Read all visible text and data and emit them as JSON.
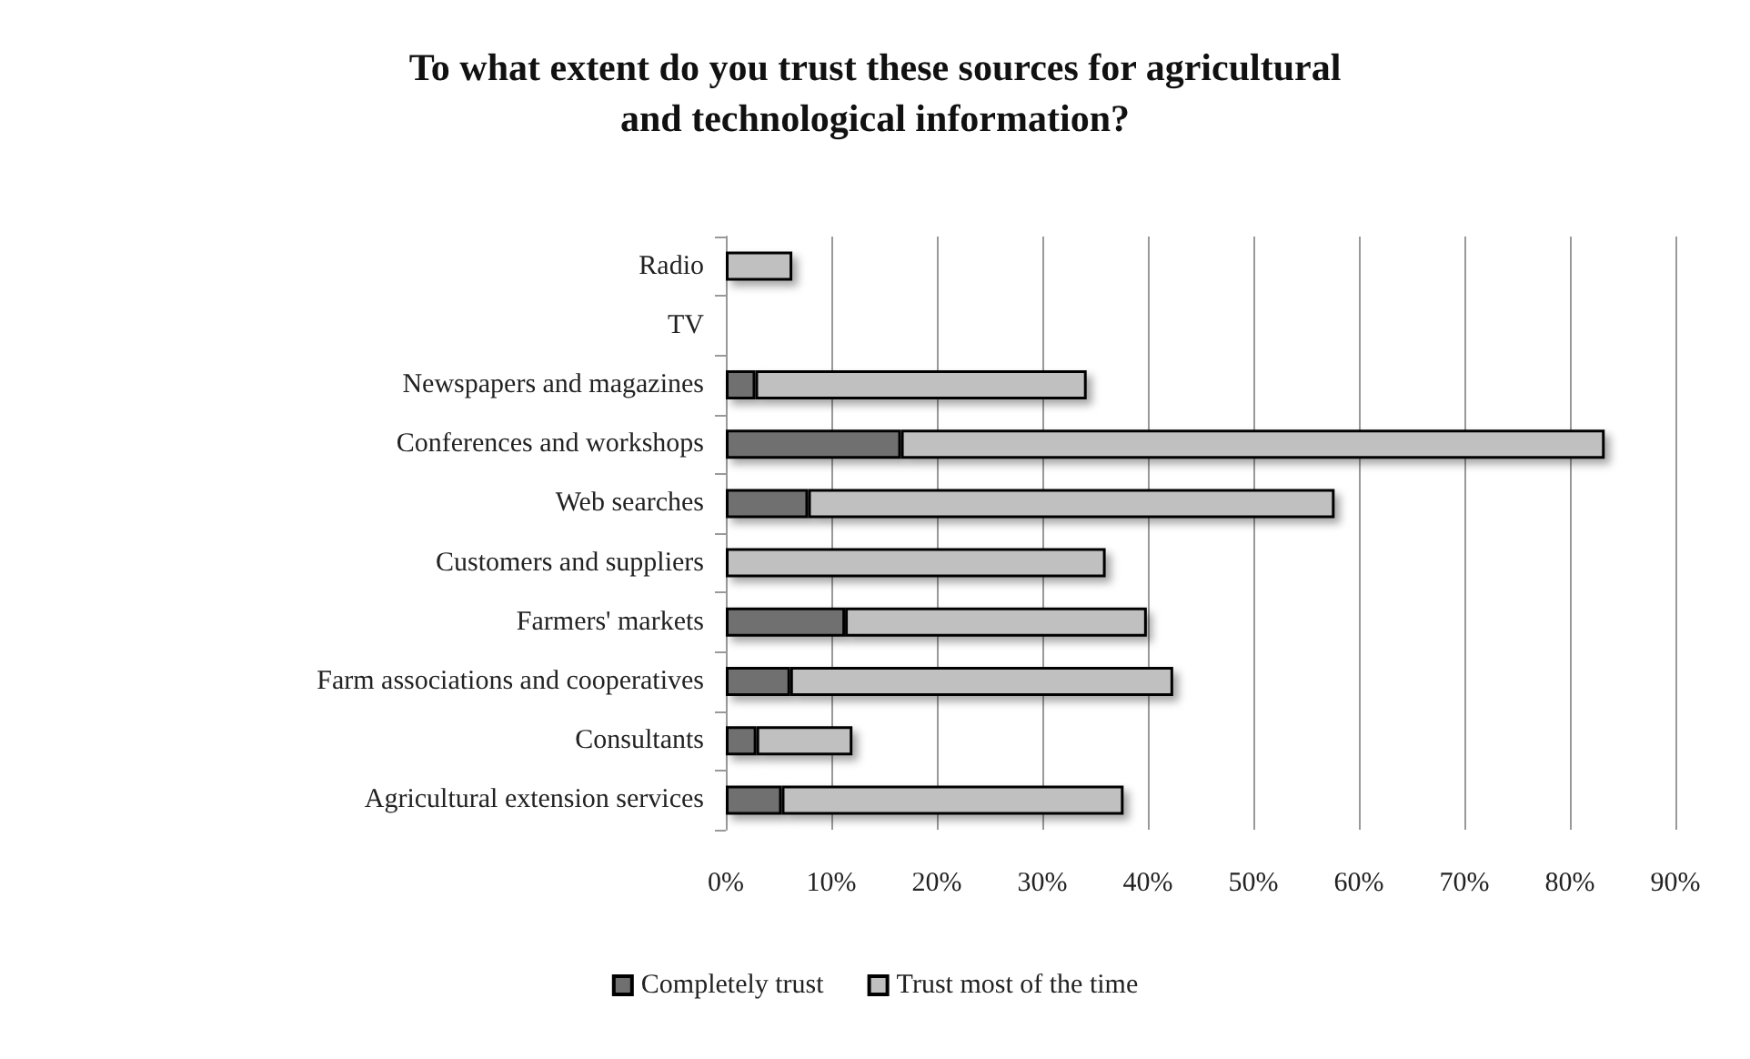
{
  "chart_data": {
    "type": "bar",
    "orientation": "horizontal",
    "stacked": true,
    "title": "To what extent do you trust these sources for agricultural\nand technological information?",
    "categories": [
      "Radio",
      "TV",
      "Newspapers and magazines",
      "Conferences and workshops",
      "Web searches",
      "Customers and suppliers",
      "Farmers' markets",
      "Farm associations and cooperatives",
      "Consultants",
      "Agricultural extension services"
    ],
    "series": [
      {
        "name": "Completely trust",
        "color": "#707070",
        "values": [
          0,
          0,
          2.8,
          16.6,
          7.8,
          0,
          11.3,
          6.1,
          2.9,
          5.3
        ]
      },
      {
        "name": "Trust most of the time",
        "color": "#c0c0c0",
        "values": [
          6.3,
          0,
          31.4,
          66.7,
          49.9,
          36.0,
          28.6,
          36.3,
          9.1,
          32.4
        ]
      }
    ],
    "xlim": [
      0,
      90
    ],
    "xticks": [
      {
        "value": 0,
        "label": "0%"
      },
      {
        "value": 10,
        "label": "10%"
      },
      {
        "value": 20,
        "label": "20%"
      },
      {
        "value": 30,
        "label": "30%"
      },
      {
        "value": 40,
        "label": "40%"
      },
      {
        "value": 50,
        "label": "50%"
      },
      {
        "value": 60,
        "label": "60%"
      },
      {
        "value": 70,
        "label": "70%"
      },
      {
        "value": 80,
        "label": "80%"
      },
      {
        "value": 90,
        "label": "90%"
      }
    ],
    "grid": "x",
    "legend": "bottom"
  }
}
